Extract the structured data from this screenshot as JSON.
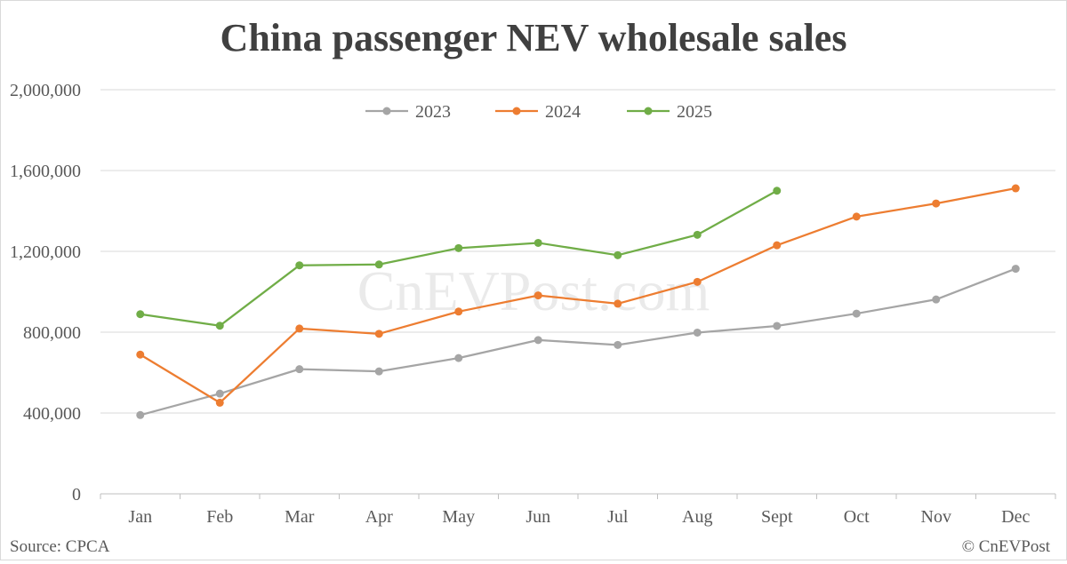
{
  "chart_data": {
    "type": "line",
    "title": "China passenger NEV wholesale sales",
    "categories": [
      "Jan",
      "Feb",
      "Mar",
      "Apr",
      "May",
      "Jun",
      "Jul",
      "Aug",
      "Sept",
      "Oct",
      "Nov",
      "Dec"
    ],
    "ylim": [
      0,
      2000000
    ],
    "yticks": [
      0,
      400000,
      800000,
      1200000,
      1600000,
      2000000
    ],
    "ytick_labels": [
      "0",
      "400,000",
      "800,000",
      "1,200,000",
      "1,600,000",
      "2,000,000"
    ],
    "grid": true,
    "legend_placement": "top-center",
    "series": [
      {
        "name": "2023",
        "color": "#a5a5a5",
        "values": [
          390000,
          496000,
          617000,
          606000,
          672000,
          761000,
          737000,
          798000,
          831000,
          892000,
          962000,
          1114000
        ]
      },
      {
        "name": "2024",
        "color": "#ed7d31",
        "values": [
          689000,
          451000,
          818000,
          792000,
          902000,
          982000,
          941000,
          1049000,
          1230000,
          1372000,
          1437000,
          1512000
        ]
      },
      {
        "name": "2025",
        "color": "#70ad47",
        "values": [
          889000,
          832000,
          1131000,
          1135000,
          1216000,
          1242000,
          1181000,
          1282000,
          1500000,
          null,
          null,
          null
        ]
      }
    ]
  },
  "footer": {
    "source": "Source: CPCA",
    "copyright": "© CnEVPost",
    "watermark": "CnEVPost.com"
  }
}
